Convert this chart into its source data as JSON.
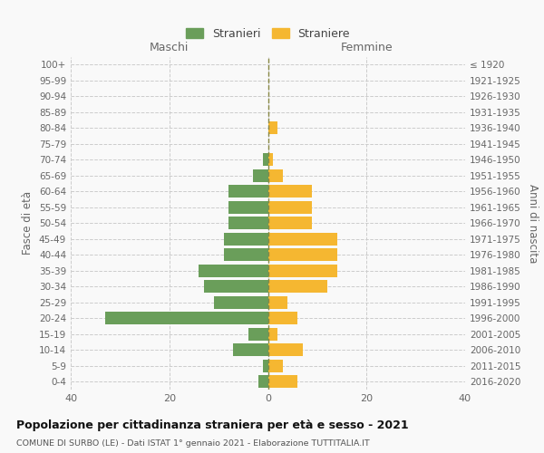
{
  "age_groups": [
    "0-4",
    "5-9",
    "10-14",
    "15-19",
    "20-24",
    "25-29",
    "30-34",
    "35-39",
    "40-44",
    "45-49",
    "50-54",
    "55-59",
    "60-64",
    "65-69",
    "70-74",
    "75-79",
    "80-84",
    "85-89",
    "90-94",
    "95-99",
    "100+"
  ],
  "birth_years": [
    "2016-2020",
    "2011-2015",
    "2006-2010",
    "2001-2005",
    "1996-2000",
    "1991-1995",
    "1986-1990",
    "1981-1985",
    "1976-1980",
    "1971-1975",
    "1966-1970",
    "1961-1965",
    "1956-1960",
    "1951-1955",
    "1946-1950",
    "1941-1945",
    "1936-1940",
    "1931-1935",
    "1926-1930",
    "1921-1925",
    "≤ 1920"
  ],
  "maschi": [
    2,
    1,
    7,
    4,
    33,
    11,
    13,
    14,
    9,
    9,
    8,
    8,
    8,
    3,
    1,
    0,
    0,
    0,
    0,
    0,
    0
  ],
  "femmine": [
    6,
    3,
    7,
    2,
    6,
    4,
    12,
    14,
    14,
    14,
    9,
    9,
    9,
    3,
    1,
    0,
    2,
    0,
    0,
    0,
    0
  ],
  "color_maschi": "#6a9e5a",
  "color_femmine": "#f5b731",
  "title": "Popolazione per cittadinanza straniera per età e sesso - 2021",
  "subtitle": "COMUNE DI SURBO (LE) - Dati ISTAT 1° gennaio 2021 - Elaborazione TUTTITALIA.IT",
  "ylabel_left": "Fasce di età",
  "ylabel_right": "Anni di nascita",
  "label_maschi": "Maschi",
  "label_femmine": "Femmine",
  "legend_maschi": "Stranieri",
  "legend_femmine": "Straniere",
  "xlim": 40,
  "background_color": "#f9f9f9",
  "grid_color": "#cccccc"
}
